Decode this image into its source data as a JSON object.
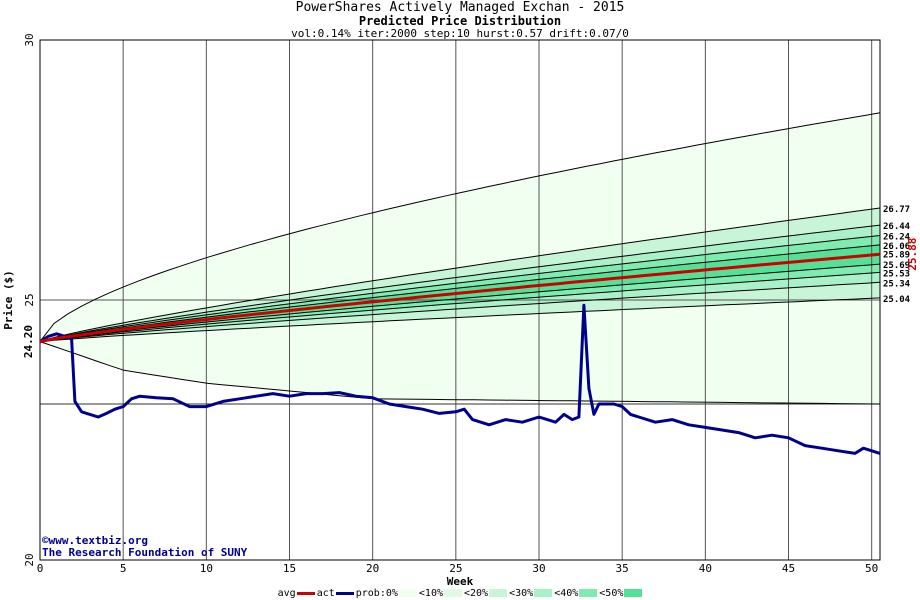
{
  "header": {
    "title": "PowerShares Actively Managed Exchan - 2015",
    "subtitle": "Predicted Price Distribution",
    "params": "vol:0.14% iter:2000 step:10 hurst:0.57 drift:0.07/0"
  },
  "credits": {
    "line1": "©www.textbiz.org",
    "line2": "The Research Foundation of SUNY"
  },
  "legend": [
    {
      "label": "avg",
      "swatch": "#cc0000",
      "kind": "line"
    },
    {
      "label": "act",
      "swatch": "#00008b",
      "kind": "line"
    },
    {
      "label": "prob:0%",
      "swatch": "#f0fff0",
      "kind": "box"
    },
    {
      "label": "<10%",
      "swatch": "#e0fae6",
      "kind": "box"
    },
    {
      "label": "<20%",
      "swatch": "#c8f5d8",
      "kind": "box"
    },
    {
      "label": "<30%",
      "swatch": "#aaf0c8",
      "kind": "box"
    },
    {
      "label": "<40%",
      "swatch": "#80ebb0",
      "kind": "box"
    },
    {
      "label": "<50%",
      "swatch": "#55e098",
      "kind": "box"
    }
  ],
  "chart_data": {
    "type": "line",
    "xlabel": "Week",
    "ylabel": "Price ($)",
    "xlim": [
      0,
      50.5
    ],
    "ylim": [
      20,
      30
    ],
    "xticks": [
      0,
      5,
      10,
      15,
      20,
      25,
      30,
      35,
      40,
      45,
      50
    ],
    "yticks": [
      20,
      25,
      30
    ],
    "start_price": 24.2,
    "start_label": "24.20",
    "last_avg_label": "25.88",
    "grid": true,
    "horizontal_reference": 23.0,
    "band_colors": [
      "#f0fff0",
      "#e0fae6",
      "#c8f5d8",
      "#aaf0c8",
      "#80ebb0",
      "#55e098"
    ],
    "envelope": {
      "upper_end": 28.6,
      "lower_weeks": [
        0,
        5,
        10,
        15,
        20,
        50.5
      ],
      "lower_values": [
        24.2,
        23.65,
        23.4,
        23.25,
        23.1,
        23.0
      ]
    },
    "quantile_lines": [
      {
        "label": "26.77",
        "end": 26.77
      },
      {
        "label": "26.44",
        "end": 26.44
      },
      {
        "label": "26.24",
        "end": 26.24
      },
      {
        "label": "26.06",
        "end": 26.06
      },
      {
        "label": "25.89",
        "end": 25.89
      },
      {
        "label": "25.69",
        "end": 25.69
      },
      {
        "label": "25.53",
        "end": 25.53
      },
      {
        "label": "25.34",
        "end": 25.34
      },
      {
        "label": "25.04",
        "end": 25.04
      }
    ],
    "series": [
      {
        "name": "avg",
        "color": "#cc0000",
        "x": [
          0,
          50.5
        ],
        "values": [
          24.2,
          25.88
        ]
      },
      {
        "name": "act",
        "color": "#00008b",
        "x": [
          0,
          0.5,
          1,
          1.5,
          1.9,
          2.1,
          2.5,
          3,
          3.5,
          4,
          4.5,
          5,
          5.5,
          6,
          7,
          8,
          9,
          10,
          11,
          12,
          13,
          14,
          15,
          16,
          17,
          18,
          19,
          20,
          21,
          22,
          23,
          24,
          25,
          25.5,
          26,
          26.5,
          27,
          28,
          29,
          30,
          31,
          31.5,
          32,
          32.4,
          32.7,
          33.0,
          33.3,
          33.6,
          34,
          34.5,
          35,
          35.5,
          36,
          37,
          38,
          39,
          40,
          41,
          42,
          43,
          44,
          45,
          46,
          47,
          48,
          49,
          49.5,
          50,
          50.5
        ],
        "values": [
          24.2,
          24.3,
          24.35,
          24.3,
          24.25,
          23.05,
          22.85,
          22.8,
          22.75,
          22.82,
          22.9,
          22.95,
          23.1,
          23.15,
          23.12,
          23.1,
          22.95,
          22.95,
          23.05,
          23.1,
          23.15,
          23.2,
          23.15,
          23.2,
          23.2,
          23.22,
          23.15,
          23.12,
          23.0,
          22.95,
          22.9,
          22.82,
          22.85,
          22.9,
          22.7,
          22.65,
          22.6,
          22.7,
          22.65,
          22.75,
          22.65,
          22.8,
          22.7,
          22.75,
          24.9,
          23.3,
          22.8,
          23.0,
          23.0,
          23.0,
          22.95,
          22.8,
          22.75,
          22.65,
          22.7,
          22.6,
          22.55,
          22.5,
          22.45,
          22.35,
          22.4,
          22.35,
          22.2,
          22.15,
          22.1,
          22.05,
          22.15,
          22.1,
          22.05
        ]
      }
    ]
  }
}
